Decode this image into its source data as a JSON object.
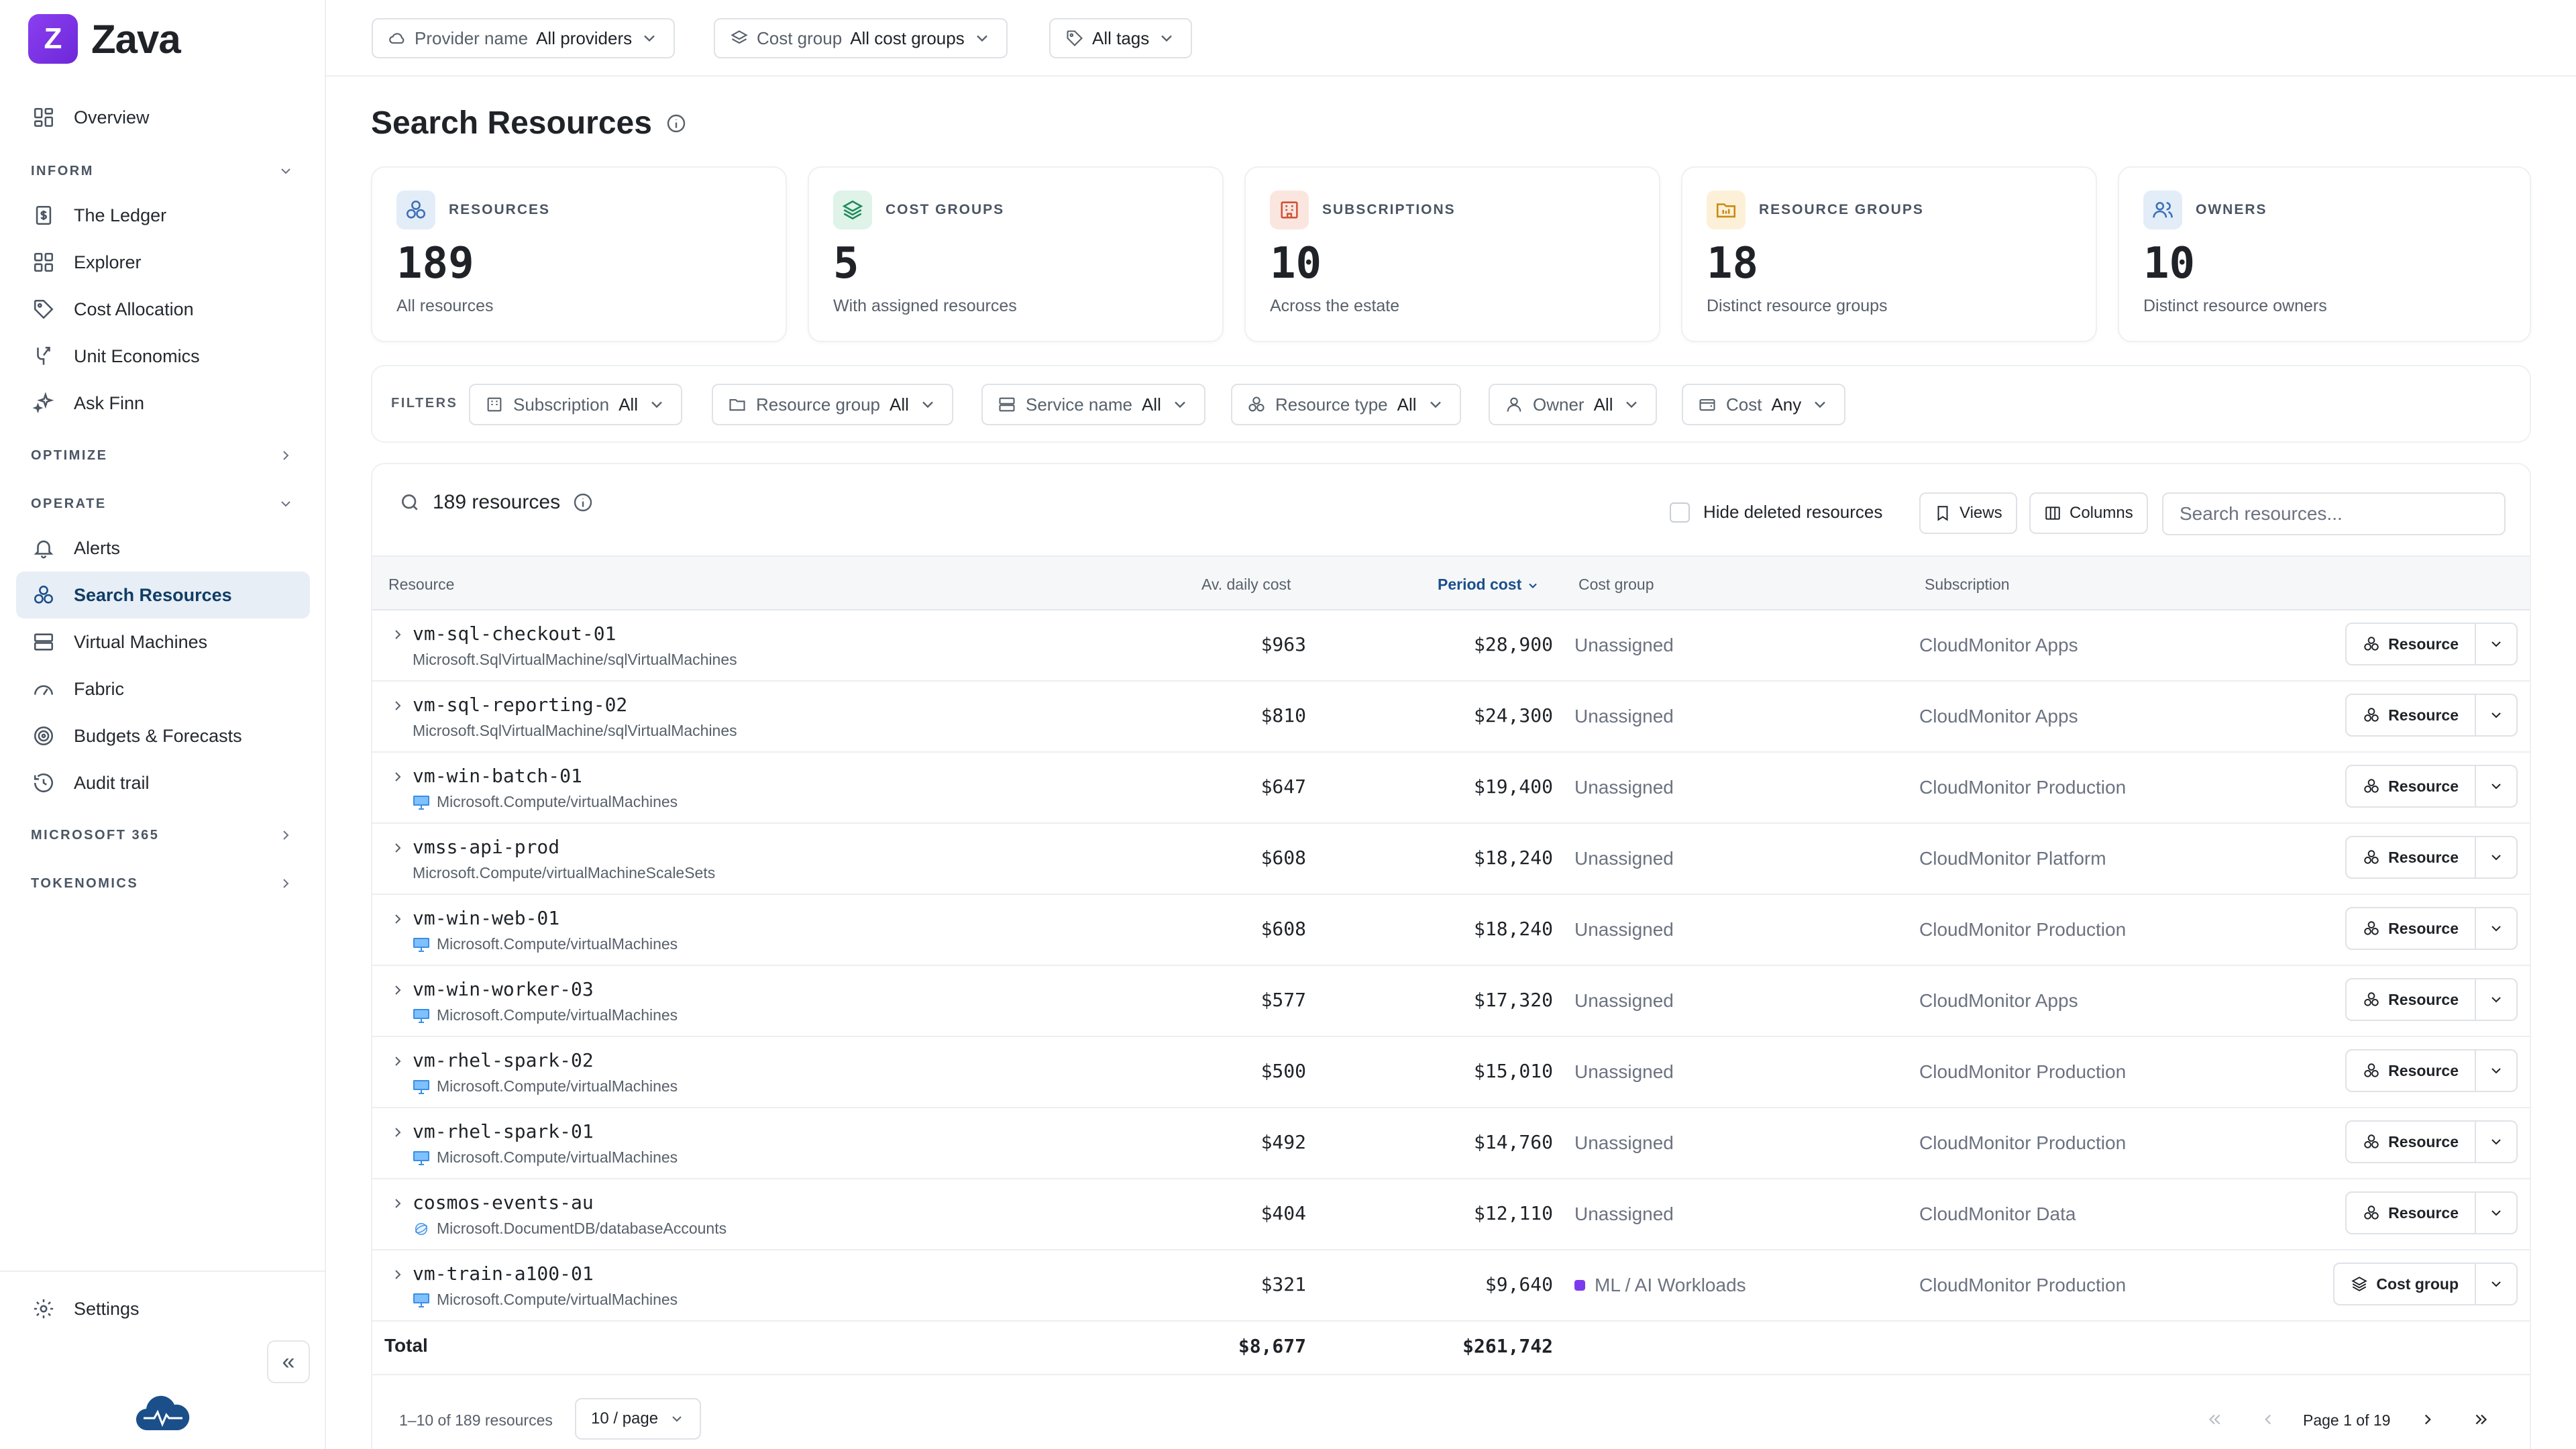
{
  "app": {
    "brand_letter": "Z",
    "brand_name": "Zava"
  },
  "sidebar": {
    "overview": "Overview",
    "sections": [
      {
        "label": "INFORM"
      },
      {
        "label": "OPTIMIZE"
      },
      {
        "label": "OPERATE"
      },
      {
        "label": "MICROSOFT 365"
      },
      {
        "label": "TOKENOMICS"
      }
    ],
    "inform_items": [
      "The Ledger",
      "Explorer",
      "Cost Allocation",
      "Unit Economics",
      "Ask Finn"
    ],
    "operate_items": [
      "Alerts",
      "Search Resources",
      "Virtual Machines",
      "Fabric",
      "Budgets & Forecasts",
      "Audit trail"
    ],
    "active_item": "Search Resources",
    "settings": "Settings",
    "collapse_glyph": "«"
  },
  "topbar": {
    "provider": {
      "label": "Provider name",
      "value": "All providers"
    },
    "cost_group": {
      "label": "Cost group",
      "value": "All cost groups"
    },
    "tags": {
      "value": "All tags"
    }
  },
  "page": {
    "title": "Search Resources"
  },
  "cards": [
    {
      "label": "RESOURCES",
      "value": "189",
      "sub": "All resources",
      "icon": "resource-icon",
      "color": "#3b6fb6",
      "bg": "#e3edf8"
    },
    {
      "label": "COST GROUPS",
      "value": "5",
      "sub": "With assigned resources",
      "icon": "layers-icon",
      "color": "#1f8a5b",
      "bg": "#dff3e8"
    },
    {
      "label": "SUBSCRIPTIONS",
      "value": "10",
      "sub": "Across the estate",
      "icon": "building-icon",
      "color": "#d0533a",
      "bg": "#fbe6df"
    },
    {
      "label": "RESOURCE GROUPS",
      "value": "18",
      "sub": "Distinct resource groups",
      "icon": "folder-icon",
      "color": "#c98a12",
      "bg": "#fcf1d8"
    },
    {
      "label": "OWNERS",
      "value": "10",
      "sub": "Distinct resource owners",
      "icon": "users-icon",
      "color": "#3b6fb6",
      "bg": "#e3edf8"
    }
  ],
  "filters": {
    "label": "FILTERS",
    "items": [
      {
        "label": "Subscription",
        "value": "All"
      },
      {
        "label": "Resource group",
        "value": "All"
      },
      {
        "label": "Service name",
        "value": "All"
      },
      {
        "label": "Resource type",
        "value": "All"
      },
      {
        "label": "Owner",
        "value": "All"
      },
      {
        "label": "Cost",
        "value": "Any"
      }
    ]
  },
  "table": {
    "count_label": "189 resources",
    "hide_deleted": "Hide deleted resources",
    "views": "Views",
    "columns_btn": "Columns",
    "search_placeholder": "Search resources...",
    "headers": {
      "resource": "Resource",
      "daily": "Av. daily cost",
      "period": "Period cost",
      "cost_group": "Cost group",
      "subscription": "Subscription"
    },
    "rows": [
      {
        "name": "vm-sql-checkout-01",
        "type": "Microsoft.SqlVirtualMachine/sqlVirtualMachines",
        "type_icon": "",
        "daily": "$963",
        "period": "$28,900",
        "cost_group": "Unassigned",
        "subscription": "CloudMonitor Apps",
        "action": "Resource"
      },
      {
        "name": "vm-sql-reporting-02",
        "type": "Microsoft.SqlVirtualMachine/sqlVirtualMachines",
        "type_icon": "",
        "daily": "$810",
        "period": "$24,300",
        "cost_group": "Unassigned",
        "subscription": "CloudMonitor Apps",
        "action": "Resource"
      },
      {
        "name": "vm-win-batch-01",
        "type": "Microsoft.Compute/virtualMachines",
        "type_icon": "vm-icon",
        "daily": "$647",
        "period": "$19,400",
        "cost_group": "Unassigned",
        "subscription": "CloudMonitor Production",
        "action": "Resource"
      },
      {
        "name": "vmss-api-prod",
        "type": "Microsoft.Compute/virtualMachineScaleSets",
        "type_icon": "",
        "daily": "$608",
        "period": "$18,240",
        "cost_group": "Unassigned",
        "subscription": "CloudMonitor Platform",
        "action": "Resource"
      },
      {
        "name": "vm-win-web-01",
        "type": "Microsoft.Compute/virtualMachines",
        "type_icon": "vm-icon",
        "daily": "$608",
        "period": "$18,240",
        "cost_group": "Unassigned",
        "subscription": "CloudMonitor Production",
        "action": "Resource"
      },
      {
        "name": "vm-win-worker-03",
        "type": "Microsoft.Compute/virtualMachines",
        "type_icon": "vm-icon",
        "daily": "$577",
        "period": "$17,320",
        "cost_group": "Unassigned",
        "subscription": "CloudMonitor Apps",
        "action": "Resource"
      },
      {
        "name": "vm-rhel-spark-02",
        "type": "Microsoft.Compute/virtualMachines",
        "type_icon": "vm-icon",
        "daily": "$500",
        "period": "$15,010",
        "cost_group": "Unassigned",
        "subscription": "CloudMonitor Production",
        "action": "Resource"
      },
      {
        "name": "vm-rhel-spark-01",
        "type": "Microsoft.Compute/virtualMachines",
        "type_icon": "vm-icon",
        "daily": "$492",
        "period": "$14,760",
        "cost_group": "Unassigned",
        "subscription": "CloudMonitor Production",
        "action": "Resource"
      },
      {
        "name": "cosmos-events-au",
        "type": "Microsoft.DocumentDB/databaseAccounts",
        "type_icon": "cosmos-icon",
        "daily": "$404",
        "period": "$12,110",
        "cost_group": "Unassigned",
        "subscription": "CloudMonitor Data",
        "action": "Resource"
      },
      {
        "name": "vm-train-a100-01",
        "type": "Microsoft.Compute/virtualMachines",
        "type_icon": "vm-icon",
        "daily": "$321",
        "period": "$9,640",
        "cost_group": "ML / AI Workloads",
        "cost_group_color": "#7c3aed",
        "subscription": "CloudMonitor Production",
        "action": "Cost group"
      }
    ],
    "total": {
      "label": "Total",
      "daily": "$8,677",
      "period": "$261,742"
    },
    "pagination": {
      "range": "1–10 of 189 resources",
      "per_page": "10 / page",
      "page_label": "Page 1 of 19"
    }
  }
}
